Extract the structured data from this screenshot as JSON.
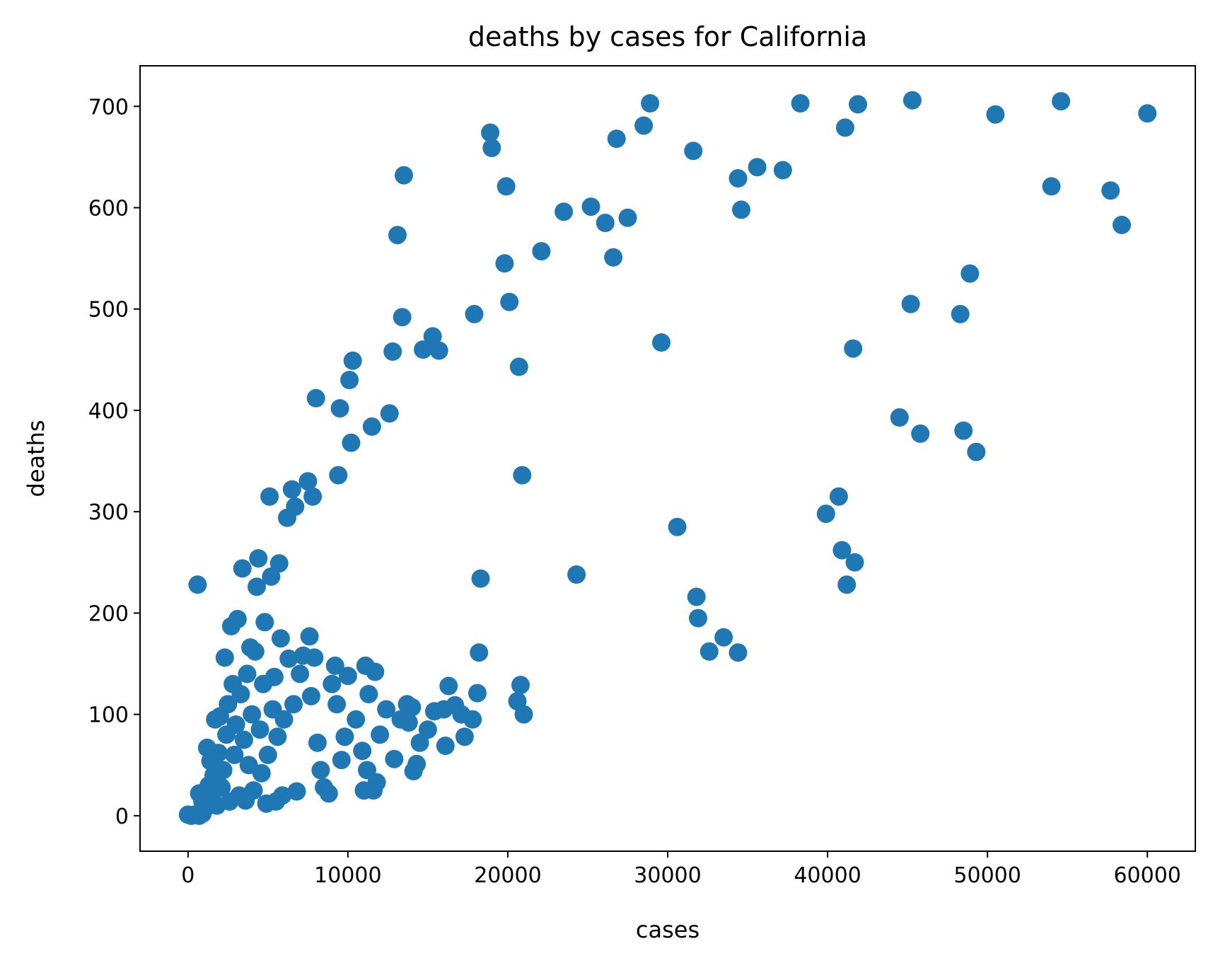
{
  "chart_data": {
    "type": "scatter",
    "title": "deaths by cases for California",
    "xlabel": "cases",
    "ylabel": "deaths",
    "xlim": [
      -3000,
      63000
    ],
    "ylim": [
      -35,
      740
    ],
    "xticks": [
      0,
      10000,
      20000,
      30000,
      40000,
      50000,
      60000
    ],
    "yticks": [
      0,
      100,
      200,
      300,
      400,
      500,
      600,
      700
    ],
    "grid": false,
    "marker_color": "#1f77b4",
    "series": [
      {
        "points": [
          [
            0,
            1
          ],
          [
            200,
            0
          ],
          [
            400,
            1
          ],
          [
            700,
            0
          ],
          [
            900,
            2
          ],
          [
            600,
            228
          ],
          [
            700,
            22
          ],
          [
            900,
            14
          ],
          [
            1100,
            8
          ],
          [
            1200,
            67
          ],
          [
            1300,
            30
          ],
          [
            1400,
            54
          ],
          [
            1500,
            18
          ],
          [
            1600,
            40
          ],
          [
            1700,
            95
          ],
          [
            1800,
            10
          ],
          [
            1900,
            62
          ],
          [
            2000,
            98
          ],
          [
            2100,
            28
          ],
          [
            2200,
            45
          ],
          [
            2300,
            156
          ],
          [
            2400,
            80
          ],
          [
            2500,
            110
          ],
          [
            2600,
            14
          ],
          [
            2700,
            187
          ],
          [
            2800,
            130
          ],
          [
            2900,
            60
          ],
          [
            3000,
            90
          ],
          [
            3100,
            194
          ],
          [
            3200,
            20
          ],
          [
            3300,
            120
          ],
          [
            3400,
            244
          ],
          [
            3500,
            75
          ],
          [
            3600,
            15
          ],
          [
            3700,
            140
          ],
          [
            3800,
            50
          ],
          [
            3900,
            166
          ],
          [
            4000,
            100
          ],
          [
            4100,
            25
          ],
          [
            4200,
            162
          ],
          [
            4300,
            226
          ],
          [
            4400,
            254
          ],
          [
            4500,
            85
          ],
          [
            4600,
            42
          ],
          [
            4700,
            130
          ],
          [
            4800,
            191
          ],
          [
            4900,
            12
          ],
          [
            5000,
            60
          ],
          [
            5100,
            315
          ],
          [
            5200,
            236
          ],
          [
            5300,
            105
          ],
          [
            5400,
            137
          ],
          [
            5500,
            14
          ],
          [
            5600,
            78
          ],
          [
            5700,
            249
          ],
          [
            5800,
            175
          ],
          [
            5900,
            20
          ],
          [
            6000,
            95
          ],
          [
            6200,
            294
          ],
          [
            6300,
            155
          ],
          [
            6500,
            322
          ],
          [
            6600,
            110
          ],
          [
            6700,
            305
          ],
          [
            6800,
            24
          ],
          [
            7000,
            140
          ],
          [
            7200,
            158
          ],
          [
            7500,
            330
          ],
          [
            7600,
            177
          ],
          [
            7700,
            118
          ],
          [
            7800,
            315
          ],
          [
            7900,
            156
          ],
          [
            8000,
            412
          ],
          [
            8100,
            72
          ],
          [
            8300,
            45
          ],
          [
            8500,
            28
          ],
          [
            8800,
            22
          ],
          [
            9000,
            130
          ],
          [
            9200,
            148
          ],
          [
            9300,
            110
          ],
          [
            9400,
            336
          ],
          [
            9500,
            402
          ],
          [
            9600,
            55
          ],
          [
            9800,
            78
          ],
          [
            10000,
            138
          ],
          [
            10100,
            430
          ],
          [
            10200,
            368
          ],
          [
            10300,
            449
          ],
          [
            10500,
            95
          ],
          [
            10900,
            64
          ],
          [
            11000,
            25
          ],
          [
            11100,
            148
          ],
          [
            11200,
            45
          ],
          [
            11300,
            120
          ],
          [
            11500,
            384
          ],
          [
            11600,
            25
          ],
          [
            11700,
            142
          ],
          [
            11800,
            33
          ],
          [
            12000,
            80
          ],
          [
            12400,
            105
          ],
          [
            12600,
            397
          ],
          [
            12800,
            458
          ],
          [
            12900,
            56
          ],
          [
            13100,
            573
          ],
          [
            13300,
            95
          ],
          [
            13400,
            492
          ],
          [
            13500,
            632
          ],
          [
            13700,
            110
          ],
          [
            13800,
            92
          ],
          [
            14000,
            107
          ],
          [
            14100,
            44
          ],
          [
            14300,
            51
          ],
          [
            14500,
            72
          ],
          [
            14700,
            460
          ],
          [
            15000,
            85
          ],
          [
            15300,
            473
          ],
          [
            15400,
            103
          ],
          [
            15700,
            459
          ],
          [
            16000,
            105
          ],
          [
            16100,
            69
          ],
          [
            16300,
            128
          ],
          [
            16700,
            109
          ],
          [
            17100,
            100
          ],
          [
            17300,
            78
          ],
          [
            17800,
            95
          ],
          [
            17900,
            495
          ],
          [
            18100,
            121
          ],
          [
            18200,
            161
          ],
          [
            18300,
            234
          ],
          [
            18900,
            674
          ],
          [
            19000,
            659
          ],
          [
            19800,
            545
          ],
          [
            19900,
            621
          ],
          [
            20100,
            507
          ],
          [
            20600,
            113
          ],
          [
            20700,
            443
          ],
          [
            20800,
            129
          ],
          [
            20900,
            336
          ],
          [
            21000,
            100
          ],
          [
            22100,
            557
          ],
          [
            23500,
            596
          ],
          [
            24300,
            238
          ],
          [
            25200,
            601
          ],
          [
            26100,
            585
          ],
          [
            26600,
            551
          ],
          [
            26800,
            668
          ],
          [
            27500,
            590
          ],
          [
            28500,
            681
          ],
          [
            28900,
            703
          ],
          [
            29600,
            467
          ],
          [
            30600,
            285
          ],
          [
            31600,
            656
          ],
          [
            31800,
            216
          ],
          [
            31900,
            195
          ],
          [
            32600,
            162
          ],
          [
            33500,
            176
          ],
          [
            34400,
            161
          ],
          [
            34400,
            629
          ],
          [
            34600,
            598
          ],
          [
            35600,
            640
          ],
          [
            37200,
            637
          ],
          [
            38300,
            703
          ],
          [
            39900,
            298
          ],
          [
            40700,
            315
          ],
          [
            40900,
            262
          ],
          [
            41100,
            679
          ],
          [
            41200,
            228
          ],
          [
            41600,
            461
          ],
          [
            41700,
            250
          ],
          [
            41900,
            702
          ],
          [
            44500,
            393
          ],
          [
            45200,
            505
          ],
          [
            45300,
            706
          ],
          [
            45800,
            377
          ],
          [
            48300,
            495
          ],
          [
            48500,
            380
          ],
          [
            48900,
            535
          ],
          [
            49300,
            359
          ],
          [
            50500,
            692
          ],
          [
            54000,
            621
          ],
          [
            54600,
            705
          ],
          [
            57700,
            617
          ],
          [
            58400,
            583
          ],
          [
            60000,
            693
          ]
        ]
      }
    ]
  }
}
